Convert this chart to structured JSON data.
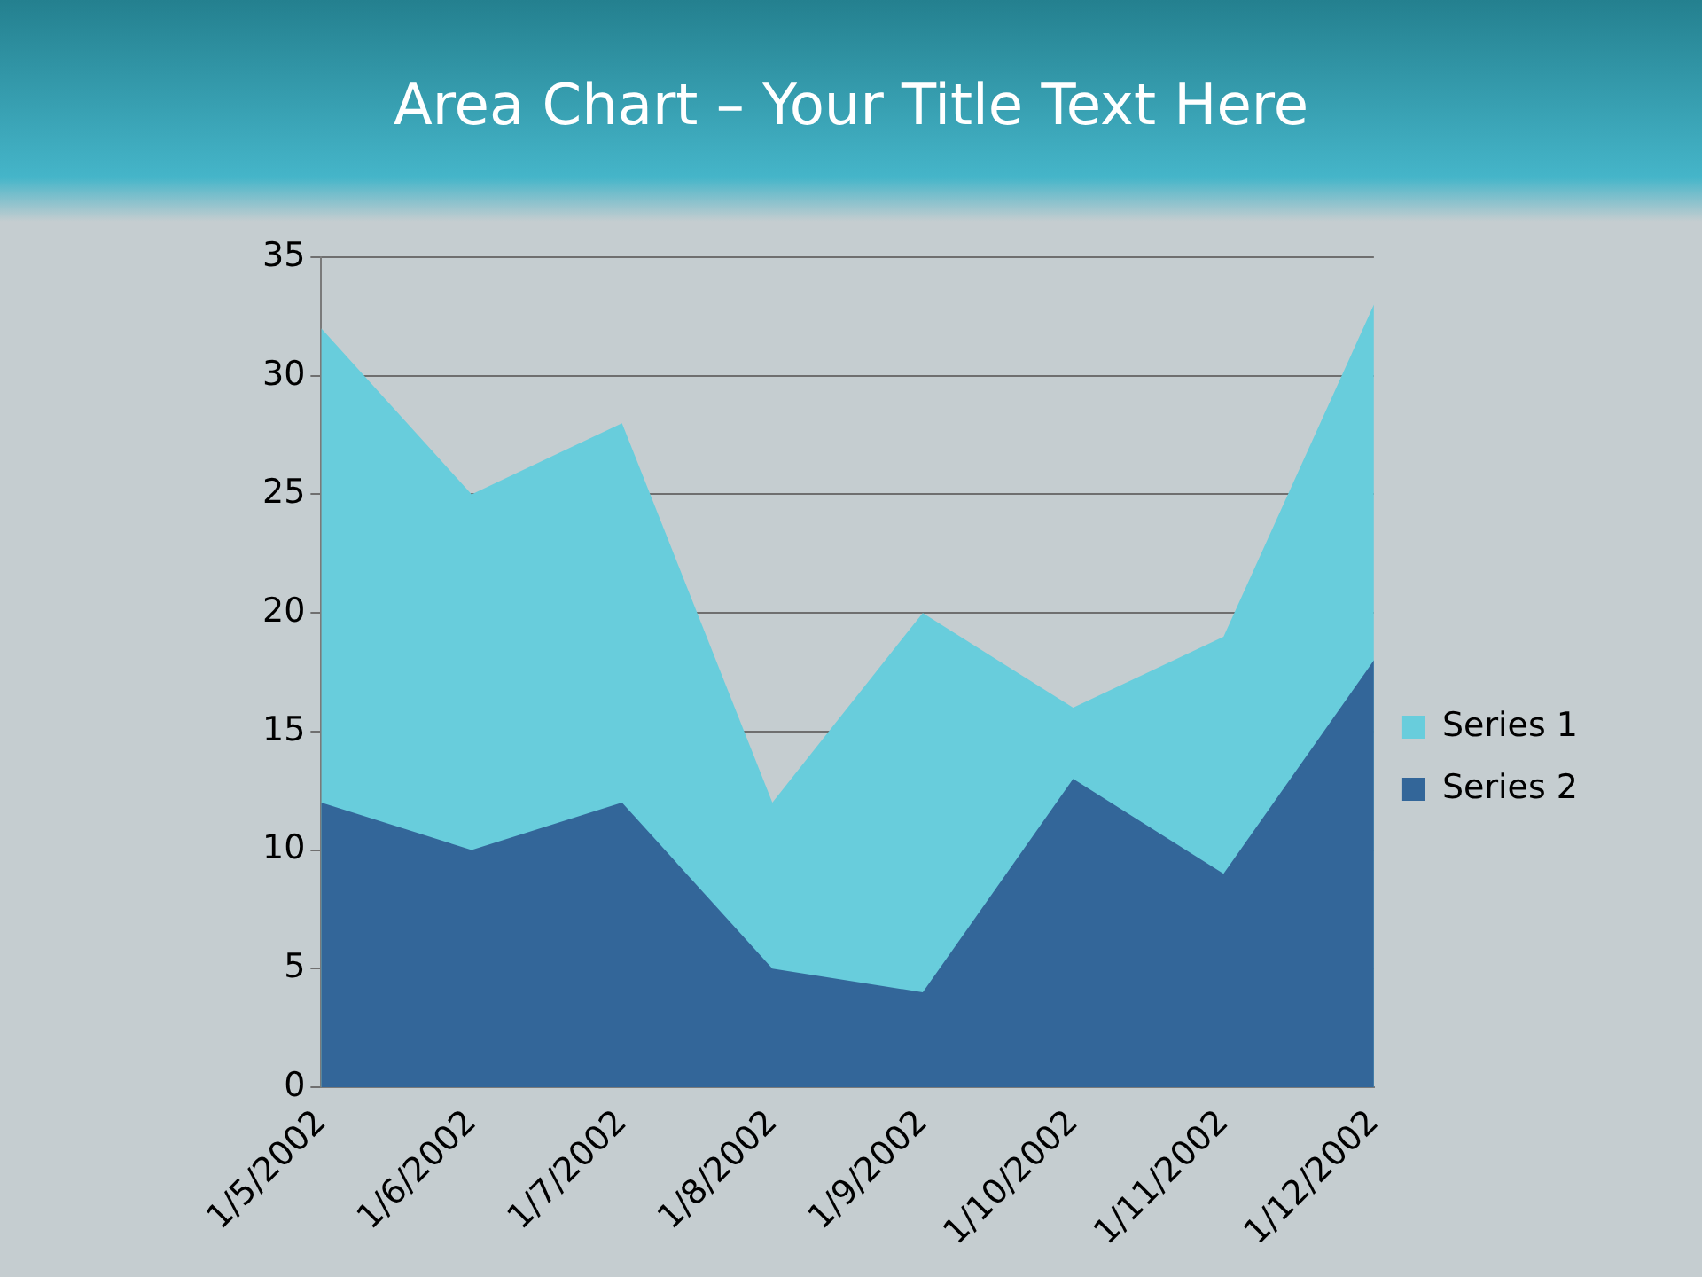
{
  "chart_data": {
    "type": "area",
    "title": "Area Chart – Your Title Text Here",
    "categories": [
      "1/5/2002",
      "1/6/2002",
      "1/7/2002",
      "1/8/2002",
      "1/9/2002",
      "1/10/2002",
      "1/11/2002",
      "1/12/2002"
    ],
    "series": [
      {
        "name": "Series 1",
        "color": "#68cddc",
        "values": [
          32,
          25,
          28,
          12,
          20,
          16,
          19,
          33
        ]
      },
      {
        "name": "Series 2",
        "color": "#336699",
        "values": [
          12,
          10,
          12,
          5,
          4,
          13,
          9,
          18
        ]
      }
    ],
    "ylim": [
      0,
      35
    ],
    "yticks": [
      0,
      5,
      10,
      15,
      20,
      25,
      30,
      35
    ],
    "grid": "y",
    "legend": "right",
    "marker": "none"
  }
}
